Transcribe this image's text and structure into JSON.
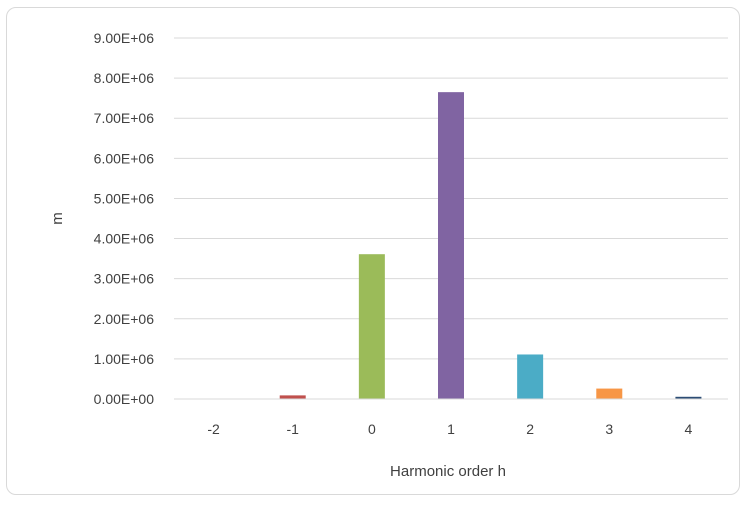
{
  "chart_data": {
    "type": "bar",
    "title": "",
    "xlabel": "Harmonic order h",
    "ylabel": "m",
    "categories": [
      "-2",
      "-1",
      "0",
      "1",
      "2",
      "3",
      "4"
    ],
    "values": [
      5000,
      90000,
      3610000,
      7650000,
      1110000,
      260000,
      55000
    ],
    "colors": [
      "#4f81bd",
      "#c0504d",
      "#9bbb59",
      "#8064a2",
      "#4bacc6",
      "#f79646",
      "#2c4d75"
    ],
    "ylim": [
      0,
      9000000
    ],
    "ytick_step": 1000000,
    "ytick_labels": [
      "0.00E+00",
      "1.00E+06",
      "2.00E+06",
      "3.00E+06",
      "4.00E+06",
      "5.00E+06",
      "6.00E+06",
      "7.00E+06",
      "8.00E+06",
      "9.00E+06"
    ],
    "grid": true,
    "legend": false
  }
}
